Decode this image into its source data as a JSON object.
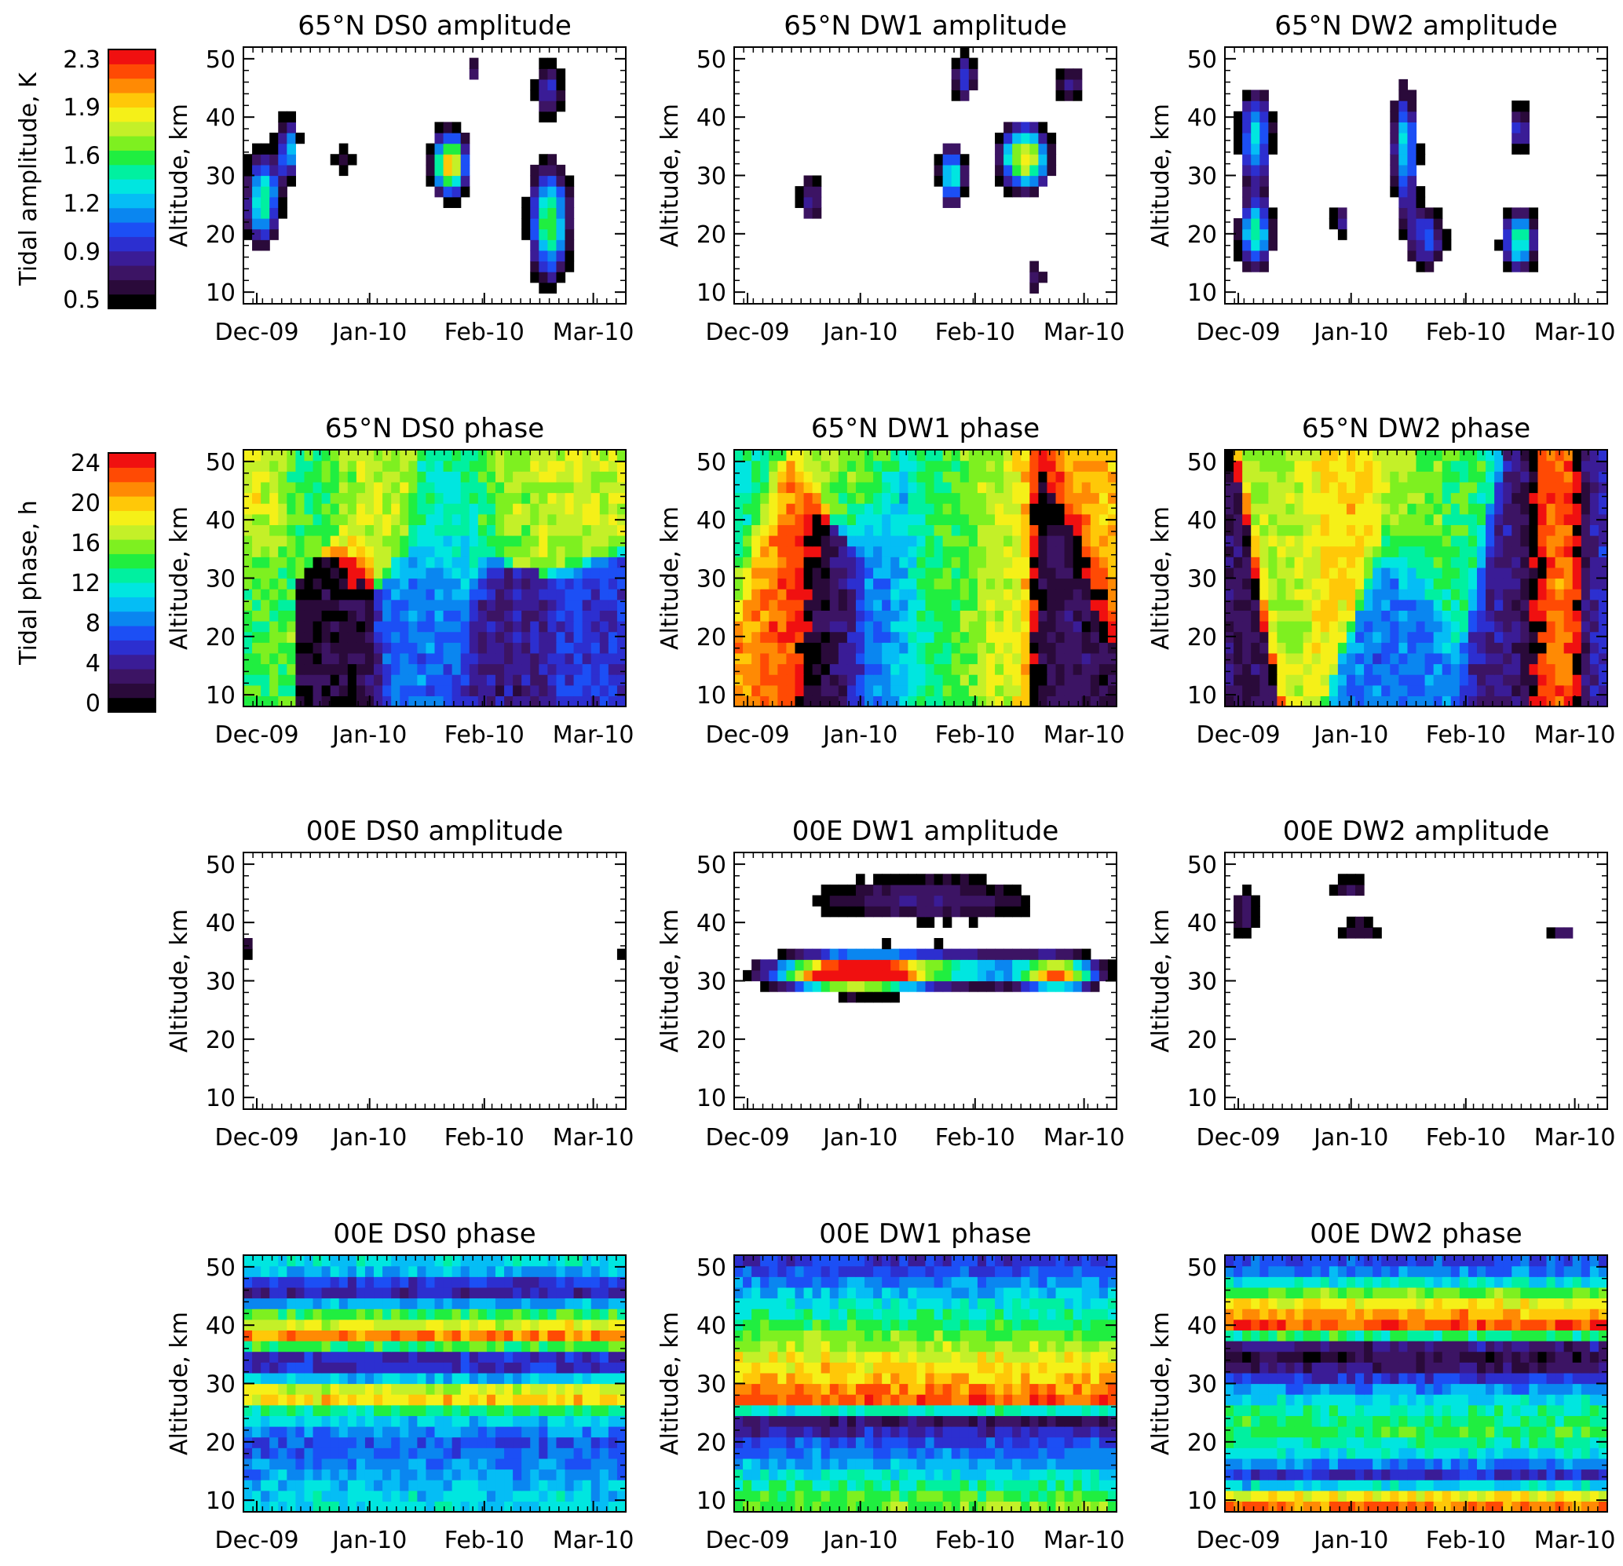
{
  "figure": {
    "x_ticks": [
      "Dec-09",
      "Jan-10",
      "Feb-10",
      "Mar-10"
    ],
    "y_ticks": [
      10,
      20,
      30,
      40,
      50
    ],
    "ylabel": "Altitude, km",
    "ylim": [
      8,
      52
    ]
  },
  "colorbars": [
    {
      "label": "Tidal amplitude, K",
      "ticks": [
        "2.3",
        "1.9",
        "1.6",
        "1.2",
        "0.9",
        "0.5"
      ],
      "range": [
        0.5,
        2.3
      ]
    },
    {
      "label": "Tidal phase, h",
      "ticks": [
        "24",
        "20",
        "16",
        "12",
        "8",
        "4",
        "0"
      ],
      "range": [
        0,
        24
      ]
    }
  ],
  "colors": {
    "scale": [
      "#000000",
      "#2a0a3a",
      "#3c1464",
      "#3a1c96",
      "#2c2fd0",
      "#1c4ff5",
      "#0a86f0",
      "#05bdf5",
      "#00e6e0",
      "#00f0a0",
      "#20ee40",
      "#7ef020",
      "#c4f028",
      "#f5f018",
      "#ffc808",
      "#ff8a04",
      "#ff4a04",
      "#f01010"
    ]
  },
  "chart_data": [
    {
      "type": "heatmap",
      "title": "65°N DS0 amplitude",
      "quantity": "amplitude",
      "blobs": [
        [
          0.05,
          26,
          0.05,
          9,
          1.5
        ],
        [
          0.12,
          35,
          0.03,
          6,
          1.2
        ],
        [
          0.26,
          33,
          0.04,
          5,
          0.7
        ],
        [
          0.54,
          32,
          0.05,
          6,
          2.0
        ],
        [
          0.8,
          22,
          0.06,
          11,
          1.6
        ],
        [
          0.8,
          45,
          0.05,
          6,
          0.9
        ],
        [
          0.6,
          48,
          0.03,
          3,
          0.8
        ]
      ]
    },
    {
      "type": "heatmap",
      "title": "65°N DW1 amplitude",
      "quantity": "amplitude",
      "blobs": [
        [
          0.2,
          26,
          0.05,
          5,
          0.9
        ],
        [
          0.57,
          30,
          0.04,
          6,
          1.4
        ],
        [
          0.76,
          33,
          0.07,
          6,
          1.9
        ],
        [
          0.79,
          13,
          0.03,
          5,
          0.8
        ],
        [
          0.6,
          47,
          0.04,
          5,
          1.0
        ],
        [
          0.88,
          46,
          0.06,
          4,
          0.8
        ]
      ]
    },
    {
      "type": "heatmap",
      "title": "65°N DW2 amplitude",
      "quantity": "amplitude",
      "blobs": [
        [
          0.08,
          37,
          0.05,
          9,
          1.3
        ],
        [
          0.08,
          20,
          0.05,
          7,
          1.4
        ],
        [
          0.47,
          35,
          0.04,
          12,
          1.3
        ],
        [
          0.53,
          19,
          0.06,
          7,
          1.0
        ],
        [
          0.77,
          19,
          0.05,
          6,
          1.5
        ],
        [
          0.77,
          38,
          0.04,
          5,
          1.0
        ],
        [
          0.3,
          22,
          0.03,
          4,
          0.8
        ]
      ]
    },
    {
      "type": "heatmap",
      "title": "65°N DS0 phase",
      "quantity": "phase",
      "bands": [
        [
          0.0,
          50,
          18
        ],
        [
          0.18,
          50,
          14
        ],
        [
          0.35,
          45,
          17
        ],
        [
          0.55,
          45,
          12
        ],
        [
          0.72,
          45,
          16
        ],
        [
          0.88,
          45,
          17
        ],
        [
          0.0,
          20,
          14
        ],
        [
          0.25,
          20,
          2
        ],
        [
          0.45,
          20,
          8
        ],
        [
          0.7,
          20,
          4
        ],
        [
          0.9,
          20,
          6
        ]
      ]
    },
    {
      "type": "heatmap",
      "title": "65°N DW1 phase",
      "quantity": "phase",
      "bands": [
        [
          0.0,
          45,
          12
        ],
        [
          0.12,
          30,
          21
        ],
        [
          0.25,
          30,
          3
        ],
        [
          0.4,
          30,
          9
        ],
        [
          0.55,
          30,
          14
        ],
        [
          0.7,
          30,
          17
        ],
        [
          0.85,
          30,
          3
        ],
        [
          0.95,
          45,
          19
        ],
        [
          0.3,
          48,
          15
        ]
      ]
    },
    {
      "type": "heatmap",
      "title": "65°N DW2 phase",
      "quantity": "phase",
      "bands": [
        [
          0.0,
          30,
          3
        ],
        [
          0.15,
          40,
          16
        ],
        [
          0.3,
          40,
          19
        ],
        [
          0.45,
          20,
          8
        ],
        [
          0.6,
          40,
          14
        ],
        [
          0.75,
          30,
          4
        ],
        [
          0.88,
          30,
          20
        ],
        [
          0.98,
          30,
          6
        ],
        [
          0.5,
          48,
          16
        ]
      ]
    },
    {
      "type": "heatmap",
      "title": "00E DS0 amplitude",
      "quantity": "amplitude",
      "blobs": [
        [
          0.02,
          36,
          0.02,
          2.5,
          0.8
        ],
        [
          0.98,
          34,
          0.02,
          2.5,
          0.8
        ]
      ]
    },
    {
      "type": "heatmap",
      "title": "00E DW1 amplitude",
      "quantity": "amplitude",
      "blobs": [
        [
          0.5,
          32,
          0.42,
          3.5,
          1.4
        ],
        [
          0.3,
          31,
          0.18,
          3,
          1.8
        ],
        [
          0.85,
          31,
          0.1,
          3,
          1.5
        ],
        [
          0.5,
          44,
          0.45,
          6,
          0.8
        ]
      ]
    },
    {
      "type": "heatmap",
      "title": "00E DW2 amplitude",
      "quantity": "amplitude",
      "blobs": [
        [
          0.05,
          42,
          0.05,
          6,
          0.8
        ],
        [
          0.35,
          39,
          0.08,
          2,
          0.8
        ],
        [
          0.88,
          38,
          0.05,
          1.5,
          0.8
        ],
        [
          0.32,
          46,
          0.1,
          3,
          0.7
        ]
      ]
    },
    {
      "type": "heatmap",
      "title": "00E DS0 phase",
      "quantity": "phase",
      "layers": [
        [
          10,
          11
        ],
        [
          15,
          9
        ],
        [
          20,
          7
        ],
        [
          25,
          12
        ],
        [
          28,
          21
        ],
        [
          31,
          10
        ],
        [
          34,
          3
        ],
        [
          38,
          21
        ],
        [
          42,
          14
        ],
        [
          46,
          4
        ],
        [
          50,
          11
        ]
      ]
    },
    {
      "type": "heatmap",
      "title": "00E DW1 phase",
      "quantity": "phase",
      "layers": [
        [
          10,
          15
        ],
        [
          13,
          12
        ],
        [
          17,
          9
        ],
        [
          21,
          6
        ],
        [
          24,
          3
        ],
        [
          27,
          22
        ],
        [
          30,
          20
        ],
        [
          34,
          18
        ],
        [
          38,
          15
        ],
        [
          43,
          12
        ],
        [
          47,
          9
        ],
        [
          50,
          6
        ]
      ]
    },
    {
      "type": "heatmap",
      "title": "00E DW2 phase",
      "quantity": "phase",
      "layers": [
        [
          10,
          21
        ],
        [
          14,
          5
        ],
        [
          18,
          11
        ],
        [
          22,
          14
        ],
        [
          26,
          12
        ],
        [
          30,
          8
        ],
        [
          33,
          3
        ],
        [
          36,
          2
        ],
        [
          40,
          22
        ],
        [
          44,
          18
        ],
        [
          47,
          12
        ],
        [
          50,
          7
        ]
      ]
    }
  ]
}
